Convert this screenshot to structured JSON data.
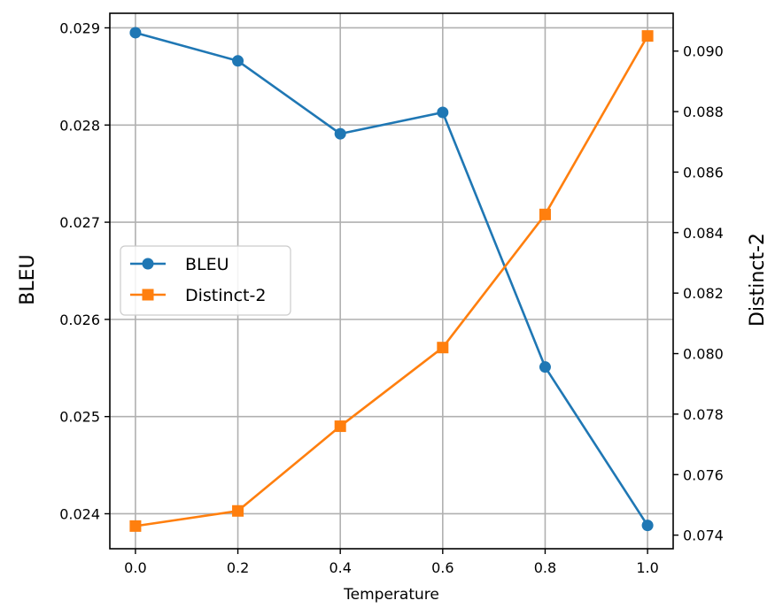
{
  "chart_data": {
    "type": "line",
    "xlabel": "Temperature",
    "ylabel_left": "BLEU",
    "ylabel_right": "Distinct-2",
    "x": [
      0.0,
      0.2,
      0.4,
      0.6,
      0.8,
      1.0
    ],
    "x_ticks": [
      "0.0",
      "0.2",
      "0.4",
      "0.6",
      "0.8",
      "1.0"
    ],
    "xlim": [
      -0.05,
      1.05
    ],
    "y_left_ticks": [
      "0.024",
      "0.025",
      "0.026",
      "0.027",
      "0.028",
      "0.029"
    ],
    "ylim_left": [
      0.02364,
      0.02915
    ],
    "y_right_ticks": [
      "0.074",
      "0.076",
      "0.078",
      "0.080",
      "0.082",
      "0.084",
      "0.086",
      "0.088",
      "0.090"
    ],
    "ylim_right": [
      0.07355,
      0.09125
    ],
    "grid": true,
    "legend_position": "center-left",
    "series": [
      {
        "name": "BLEU",
        "axis": "left",
        "color": "#1f77b4",
        "marker": "circle",
        "values": [
          0.02895,
          0.02866,
          0.02791,
          0.02813,
          0.02551,
          0.02388
        ]
      },
      {
        "name": "Distinct-2",
        "axis": "right",
        "color": "#ff7f0e",
        "marker": "square",
        "values": [
          0.0743,
          0.0748,
          0.0776,
          0.0802,
          0.0846,
          0.0905
        ]
      }
    ]
  }
}
